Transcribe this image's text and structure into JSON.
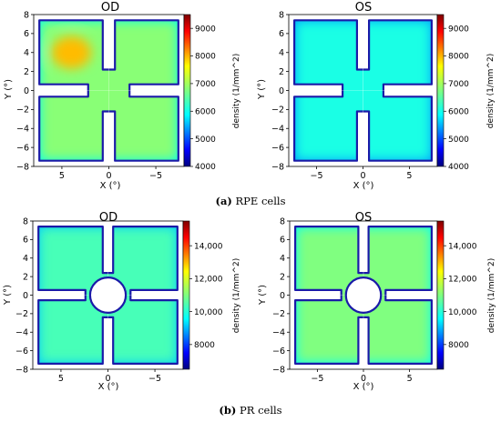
{
  "panels": [
    {
      "caption_letter": "(a)",
      "caption_text": " RPE cells",
      "colorbar_label": "density (1/mm^2)",
      "colorbar_ticks": [
        "9000",
        "8000",
        "7000",
        "6000",
        "5000",
        "4000"
      ],
      "colorbar_range": [
        4000,
        9500
      ]
    },
    {
      "caption_letter": "(b)",
      "caption_text": " PR cells",
      "colorbar_label": "density (1/mm^2)",
      "colorbar_ticks": [
        "14,000",
        "12,000",
        "10,000",
        "8000"
      ],
      "colorbar_range": [
        6500,
        15500
      ]
    }
  ],
  "chart_data": [
    {
      "type": "heatmap",
      "title": "OD",
      "xlabel": "X (°)",
      "ylabel": "Y (°)",
      "x_tick_labels": [
        "5",
        "0",
        "−5"
      ],
      "x_ticks": [
        5,
        0,
        -5
      ],
      "y_tick_labels": [
        "8",
        "6",
        "4",
        "2",
        "0",
        "−2",
        "−4",
        "−6",
        "−8"
      ],
      "y_ticks": [
        8,
        6,
        4,
        2,
        0,
        -2,
        -4,
        -6,
        -8
      ],
      "xlim": [
        8,
        -8
      ],
      "ylim": [
        -8,
        8
      ],
      "x_reversed": true,
      "shape": "cross-notched square",
      "colorscale": "jet",
      "color_range": [
        4000,
        9500
      ],
      "typical_value": 6800,
      "hot_spot": {
        "x": 4,
        "y": 4,
        "value": 7800
      }
    },
    {
      "type": "heatmap",
      "title": "OS",
      "xlabel": "X (°)",
      "ylabel": "Y (°)",
      "x_tick_labels": [
        "−5",
        "0",
        "5"
      ],
      "x_ticks": [
        -5,
        0,
        5
      ],
      "y_tick_labels": [
        "8",
        "6",
        "4",
        "2",
        "0",
        "−2",
        "−4",
        "−6",
        "−8"
      ],
      "y_ticks": [
        8,
        6,
        4,
        2,
        0,
        -2,
        -4,
        -6,
        -8
      ],
      "xlim": [
        -8,
        8
      ],
      "ylim": [
        -8,
        8
      ],
      "x_reversed": false,
      "shape": "cross-notched square",
      "colorscale": "jet",
      "color_range": [
        4000,
        9500
      ],
      "typical_value": 6200
    },
    {
      "type": "heatmap",
      "title": "OD",
      "xlabel": "X (°)",
      "ylabel": "Y (°)",
      "x_tick_labels": [
        "5",
        "0",
        "−5"
      ],
      "x_ticks": [
        5,
        0,
        -5
      ],
      "y_tick_labels": [
        "8",
        "6",
        "4",
        "2",
        "0",
        "−2",
        "−4",
        "−6",
        "−8"
      ],
      "y_ticks": [
        8,
        6,
        4,
        2,
        0,
        -2,
        -4,
        -6,
        -8
      ],
      "xlim": [
        8,
        -8
      ],
      "ylim": [
        -8,
        8
      ],
      "x_reversed": true,
      "shape": "cross-notched square with central hole",
      "colorscale": "jet",
      "color_range": [
        6500,
        15500
      ],
      "typical_value": 10500
    },
    {
      "type": "heatmap",
      "title": "OS",
      "xlabel": "X (°)",
      "ylabel": "Y (°)",
      "x_tick_labels": [
        "−5",
        "0",
        "5"
      ],
      "x_ticks": [
        -5,
        0,
        5
      ],
      "y_tick_labels": [
        "8",
        "6",
        "4",
        "2",
        "0",
        "−2",
        "−4",
        "−6",
        "−8"
      ],
      "y_ticks": [
        8,
        6,
        4,
        2,
        0,
        -2,
        -4,
        -6,
        -8
      ],
      "xlim": [
        -8,
        8
      ],
      "ylim": [
        -8,
        8
      ],
      "x_reversed": false,
      "shape": "cross-notched square with central hole",
      "colorscale": "jet",
      "color_range": [
        6500,
        15500
      ],
      "typical_value": 11000
    }
  ]
}
